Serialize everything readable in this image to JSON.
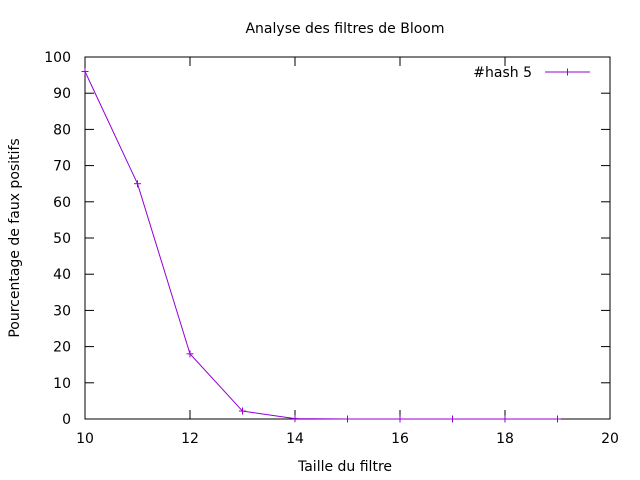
{
  "chart_data": {
    "type": "line",
    "title": "Analyse des filtres de Bloom",
    "xlabel": "Taille du filtre",
    "ylabel": "Pourcentage de faux positifs",
    "xlim": [
      10,
      20
    ],
    "ylim": [
      0,
      100
    ],
    "xticks": [
      10,
      12,
      14,
      16,
      18,
      20
    ],
    "yticks": [
      0,
      10,
      20,
      30,
      40,
      50,
      60,
      70,
      80,
      90,
      100
    ],
    "grid": false,
    "legend_position": "top-right",
    "series": [
      {
        "name": "#hash 5",
        "color": "#9400d3",
        "marker": "plus",
        "x": [
          10,
          11,
          12,
          13,
          14,
          15,
          16,
          17,
          18,
          19
        ],
        "y": [
          96,
          65,
          18,
          2.2,
          0.1,
          0,
          0,
          0,
          0,
          0
        ]
      }
    ]
  }
}
